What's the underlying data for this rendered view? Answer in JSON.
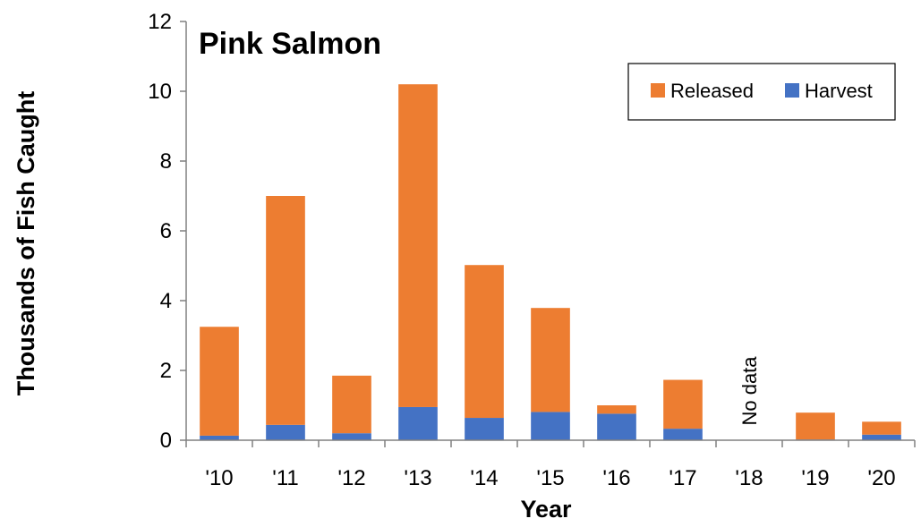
{
  "chart_data": {
    "type": "bar",
    "stacked": true,
    "title": "Pink Salmon",
    "xlabel": "Year",
    "ylabel": "Thousands of Fish Caught",
    "ylim": [
      0,
      12
    ],
    "yticks": [
      0,
      2,
      4,
      6,
      8,
      10,
      12
    ],
    "grid": false,
    "legend_position": "top-right",
    "categories": [
      "'10",
      "'11",
      "'12",
      "'13",
      "'14",
      "'15",
      "'16",
      "'17",
      "'18",
      "'19",
      "'20"
    ],
    "series": [
      {
        "name": "Harvest",
        "color": "#4472C4",
        "values": [
          0.13,
          0.44,
          0.2,
          0.95,
          0.64,
          0.81,
          0.76,
          0.33,
          null,
          0.02,
          0.16
        ]
      },
      {
        "name": "Released",
        "color": "#ED7D31",
        "values": [
          3.12,
          6.56,
          1.65,
          9.25,
          4.38,
          2.98,
          0.24,
          1.4,
          null,
          0.77,
          0.37
        ]
      }
    ],
    "legend_order": [
      "Released",
      "Harvest"
    ],
    "annotations": [
      {
        "category": "'18",
        "text": "No data"
      }
    ]
  }
}
